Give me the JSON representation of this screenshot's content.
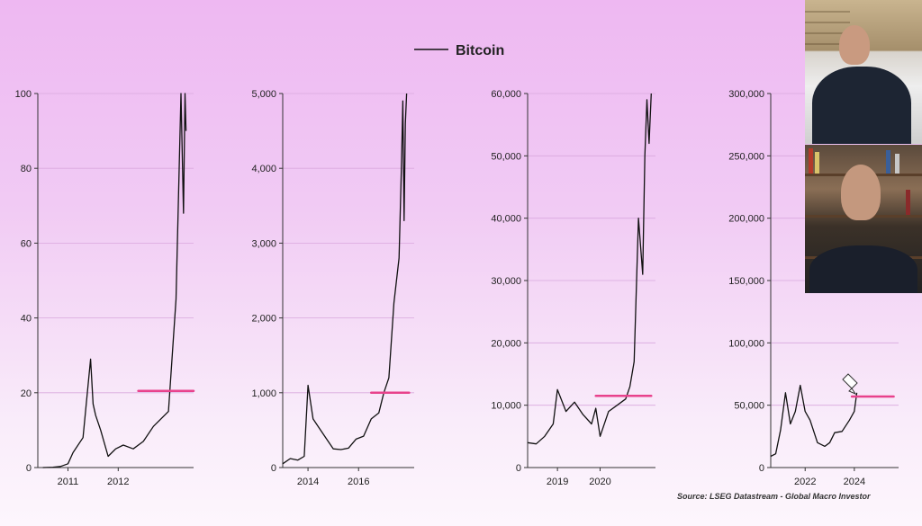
{
  "legend": {
    "label": "Bitcoin",
    "color": "#111111"
  },
  "source": "Source: LSEG Datastream - Global Macro Investor",
  "colors": {
    "line": "#111111",
    "annotation": "#e8428c",
    "grid": "#d9a8de"
  },
  "chart_data": [
    {
      "type": "line",
      "series": [
        {
          "name": "Bitcoin",
          "x": [
            2010.5,
            2010.7,
            2010.85,
            2011.0,
            2011.1,
            2011.3,
            2011.45,
            2011.5,
            2011.55,
            2011.65,
            2011.8,
            2011.95,
            2012.1,
            2012.3,
            2012.5,
            2012.7,
            2012.85,
            2013.0,
            2013.15,
            2013.25,
            2013.3,
            2013.33,
            2013.35
          ],
          "y": [
            0,
            0.1,
            0.3,
            1,
            4,
            8,
            29,
            17,
            14,
            10,
            3,
            5,
            6,
            5,
            7,
            11,
            13,
            15,
            45,
            100,
            68,
            100,
            90
          ]
        }
      ],
      "ylim": [
        0,
        100
      ],
      "yticks": [
        0,
        20,
        40,
        60,
        80,
        100
      ],
      "ytick_labels": [
        "0",
        "20",
        "40",
        "60",
        "80",
        "100"
      ],
      "xlim": [
        2010.4,
        2013.5
      ],
      "xticks": [
        2011,
        2012
      ],
      "xtick_labels": [
        "2011",
        "2012"
      ],
      "annotation": {
        "x_from": 2012.4,
        "x_to": 2013.5,
        "y": 20.5
      }
    },
    {
      "type": "line",
      "series": [
        {
          "name": "Bitcoin",
          "x": [
            2013.0,
            2013.3,
            2013.6,
            2013.85,
            2014.0,
            2014.2,
            2014.4,
            2014.7,
            2015.0,
            2015.3,
            2015.6,
            2015.9,
            2016.2,
            2016.5,
            2016.8,
            2017.0,
            2017.2,
            2017.4,
            2017.6,
            2017.7,
            2017.75,
            2017.8,
            2017.85,
            2017.9
          ],
          "y": [
            50,
            120,
            100,
            150,
            1100,
            650,
            550,
            400,
            250,
            240,
            260,
            380,
            420,
            650,
            730,
            1000,
            1200,
            2200,
            2800,
            4100,
            4900,
            3300,
            4600,
            5000
          ]
        }
      ],
      "ylim": [
        0,
        5000
      ],
      "yticks": [
        0,
        1000,
        2000,
        3000,
        4000,
        5000
      ],
      "ytick_labels": [
        "0",
        "1,000",
        "2,000",
        "3,000",
        "4,000",
        "5,000"
      ],
      "xlim": [
        2013.0,
        2018.2
      ],
      "xticks": [
        2014,
        2016
      ],
      "xtick_labels": [
        "2014",
        "2016"
      ],
      "annotation": {
        "x_from": 2016.5,
        "x_to": 2018.0,
        "y": 1000
      }
    },
    {
      "type": "line",
      "series": [
        {
          "name": "Bitcoin",
          "x": [
            2018.3,
            2018.5,
            2018.7,
            2018.9,
            2019.0,
            2019.2,
            2019.4,
            2019.6,
            2019.8,
            2019.9,
            2020.0,
            2020.2,
            2020.4,
            2020.6,
            2020.7,
            2020.8,
            2020.9,
            2021.0,
            2021.05,
            2021.1,
            2021.15,
            2021.2
          ],
          "y": [
            4000,
            3800,
            5000,
            7000,
            12500,
            9000,
            10500,
            8500,
            7000,
            9500,
            5000,
            9000,
            10000,
            11000,
            13000,
            17000,
            40000,
            31000,
            50000,
            59000,
            52000,
            60000
          ]
        }
      ],
      "ylim": [
        0,
        60000
      ],
      "yticks": [
        0,
        10000,
        20000,
        30000,
        40000,
        50000,
        60000
      ],
      "ytick_labels": [
        "0",
        "10,000",
        "20,000",
        "30,000",
        "40,000",
        "50,000",
        "60,000"
      ],
      "xlim": [
        2018.3,
        2021.3
      ],
      "xticks": [
        2019,
        2020
      ],
      "xtick_labels": [
        "2019",
        "2020"
      ],
      "annotation": {
        "x_from": 2019.9,
        "x_to": 2021.2,
        "y": 11500
      }
    },
    {
      "type": "line",
      "series": [
        {
          "name": "Bitcoin",
          "x": [
            2020.6,
            2020.8,
            2021.0,
            2021.2,
            2021.4,
            2021.6,
            2021.8,
            2022.0,
            2022.2,
            2022.5,
            2022.8,
            2023.0,
            2023.2,
            2023.5,
            2023.8,
            2024.0,
            2024.1
          ],
          "y": [
            9000,
            11000,
            30000,
            60000,
            35000,
            45000,
            66000,
            45000,
            38000,
            20000,
            17000,
            20000,
            28000,
            29000,
            38000,
            45000,
            60000
          ]
        }
      ],
      "ylim": [
        0,
        300000
      ],
      "yticks": [
        0,
        50000,
        100000,
        150000,
        200000,
        250000,
        300000
      ],
      "ytick_labels": [
        "0",
        "50,000",
        "100,000",
        "150,000",
        "200,000",
        "250,000",
        "300,000"
      ],
      "xlim": [
        2020.6,
        2025.8
      ],
      "xticks": [
        2022,
        2024
      ],
      "xtick_labels": [
        "2022",
        "2024"
      ],
      "annotation": {
        "x_from": 2023.9,
        "x_to": 2025.6,
        "y": 57000
      }
    }
  ]
}
